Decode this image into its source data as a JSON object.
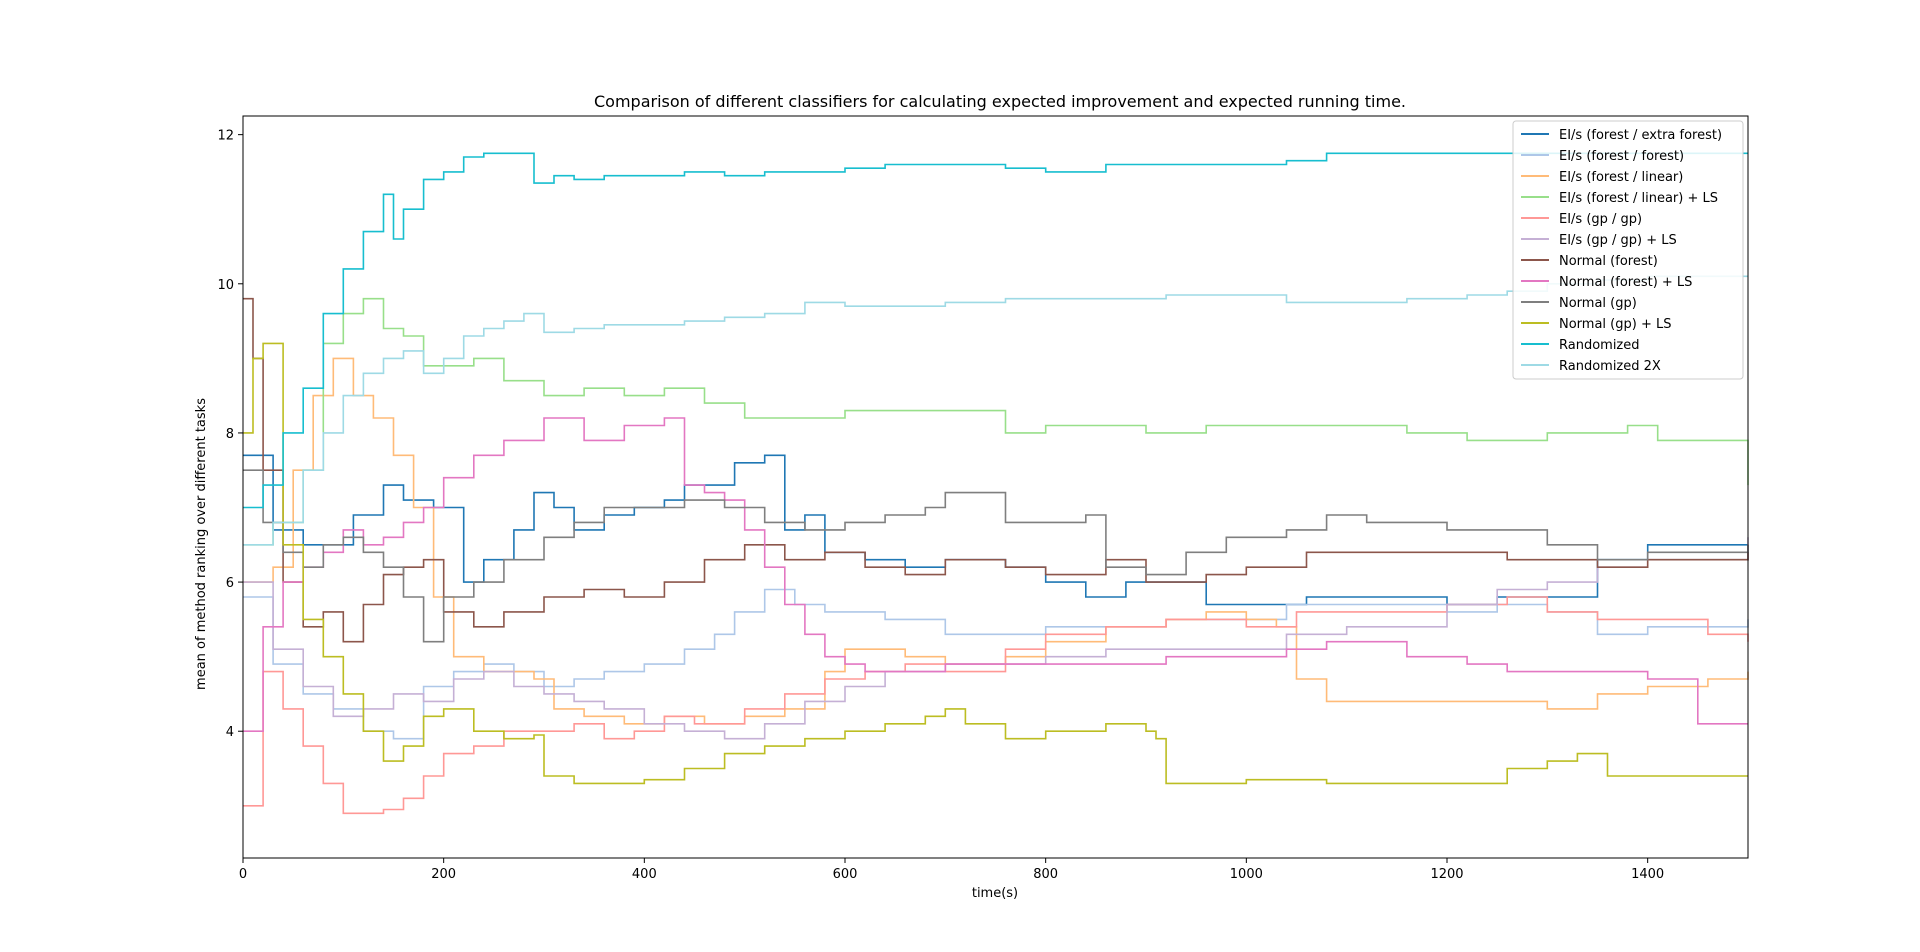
{
  "chart_data": {
    "type": "line",
    "title": "Comparison of different classifiers for calculating expected improvement and expected running time.",
    "xlabel": "time(s)",
    "ylabel": "mean of method ranking over different tasks",
    "xlim": [
      0,
      1500
    ],
    "ylim": [
      2.3,
      12.25
    ],
    "xticks": [
      0,
      200,
      400,
      600,
      800,
      1000,
      1200,
      1400
    ],
    "yticks": [
      4,
      6,
      8,
      10,
      12
    ],
    "grid": false,
    "legend_position": "top-right",
    "series": [
      {
        "name": "EI/s (forest / extra forest)",
        "color": "#1f77b4",
        "x": [
          0,
          30,
          60,
          90,
          110,
          140,
          160,
          190,
          220,
          240,
          270,
          290,
          310,
          330,
          360,
          390,
          420,
          440,
          460,
          490,
          520,
          540,
          560,
          580,
          620,
          660,
          700,
          760,
          800,
          840,
          880,
          920,
          960,
          1000,
          1060,
          1100,
          1160,
          1200,
          1250,
          1300,
          1350,
          1400,
          1500
        ],
        "y": [
          7.7,
          6.7,
          6.5,
          6.5,
          6.9,
          7.3,
          7.1,
          7.0,
          6.0,
          6.3,
          6.7,
          7.2,
          7.0,
          6.7,
          6.9,
          7.0,
          7.1,
          7.3,
          7.3,
          7.6,
          7.7,
          6.7,
          6.9,
          6.4,
          6.3,
          6.2,
          6.3,
          6.2,
          6.0,
          5.8,
          6.0,
          6.0,
          5.7,
          5.7,
          5.8,
          5.8,
          5.8,
          5.7,
          5.8,
          5.8,
          6.3,
          6.5,
          6.5
        ]
      },
      {
        "name": "EI/s (forest / forest)",
        "color": "#aec7e8",
        "x": [
          0,
          30,
          60,
          90,
          120,
          150,
          180,
          210,
          240,
          270,
          300,
          330,
          360,
          400,
          440,
          470,
          490,
          520,
          550,
          580,
          600,
          640,
          700,
          750,
          800,
          860,
          920,
          980,
          1040,
          1100,
          1200,
          1250,
          1300,
          1350,
          1400,
          1500
        ],
        "y": [
          5.8,
          4.9,
          4.5,
          4.3,
          4.0,
          3.9,
          4.6,
          4.8,
          4.9,
          4.8,
          4.6,
          4.7,
          4.8,
          4.9,
          5.1,
          5.3,
          5.6,
          5.9,
          5.7,
          5.6,
          5.6,
          5.5,
          5.3,
          5.3,
          5.4,
          5.4,
          5.5,
          5.5,
          5.7,
          5.7,
          5.6,
          5.7,
          5.6,
          5.3,
          5.4,
          5.5
        ]
      },
      {
        "name": "EI/s (forest / linear)",
        "color": "#ffbb78",
        "x": [
          0,
          30,
          50,
          70,
          90,
          110,
          130,
          150,
          170,
          190,
          210,
          240,
          270,
          290,
          310,
          340,
          380,
          420,
          460,
          500,
          540,
          580,
          600,
          660,
          700,
          760,
          800,
          860,
          920,
          960,
          1000,
          1030,
          1050,
          1080,
          1120,
          1200,
          1260,
          1300,
          1350,
          1400,
          1460,
          1500
        ],
        "y": [
          6.0,
          6.2,
          7.5,
          8.5,
          9.0,
          8.5,
          8.2,
          7.7,
          7.0,
          5.8,
          5.0,
          4.8,
          4.8,
          4.7,
          4.3,
          4.2,
          4.1,
          4.2,
          4.1,
          4.2,
          4.3,
          4.8,
          5.1,
          5.0,
          4.9,
          5.0,
          5.2,
          5.4,
          5.5,
          5.6,
          5.5,
          5.4,
          4.7,
          4.4,
          4.4,
          4.4,
          4.4,
          4.3,
          4.5,
          4.6,
          4.7,
          4.8
        ]
      },
      {
        "name": "EI/s (forest / linear) + LS",
        "color": "#98df8a",
        "x": [
          0,
          30,
          60,
          80,
          100,
          120,
          140,
          160,
          180,
          200,
          230,
          260,
          300,
          340,
          380,
          420,
          460,
          500,
          540,
          600,
          700,
          760,
          800,
          900,
          960,
          1000,
          1080,
          1160,
          1220,
          1260,
          1300,
          1380,
          1410,
          1450,
          1500
        ],
        "y": [
          6.5,
          6.8,
          7.5,
          9.2,
          9.6,
          9.8,
          9.4,
          9.3,
          8.9,
          8.9,
          9.0,
          8.7,
          8.5,
          8.6,
          8.5,
          8.6,
          8.4,
          8.2,
          8.2,
          8.3,
          8.3,
          8.0,
          8.1,
          8.0,
          8.1,
          8.1,
          8.1,
          8.0,
          7.9,
          7.9,
          8.0,
          8.1,
          7.9,
          7.9,
          7.3
        ]
      },
      {
        "name": "EI/s (gp / gp)",
        "color": "#ff9896",
        "x": [
          0,
          20,
          40,
          60,
          80,
          100,
          120,
          140,
          160,
          180,
          200,
          230,
          260,
          300,
          330,
          360,
          390,
          420,
          450,
          500,
          540,
          580,
          620,
          660,
          700,
          760,
          800,
          860,
          920,
          980,
          1000,
          1050,
          1100,
          1200,
          1260,
          1300,
          1350,
          1400,
          1460,
          1500
        ],
        "y": [
          3.0,
          4.8,
          4.3,
          3.8,
          3.3,
          2.9,
          2.9,
          2.95,
          3.1,
          3.4,
          3.7,
          3.8,
          4.0,
          4.0,
          4.1,
          3.9,
          4.0,
          4.2,
          4.1,
          4.3,
          4.5,
          4.7,
          4.8,
          4.9,
          4.8,
          5.1,
          5.3,
          5.4,
          5.5,
          5.5,
          5.4,
          5.6,
          5.6,
          5.7,
          5.8,
          5.6,
          5.5,
          5.5,
          5.3,
          5.2
        ]
      },
      {
        "name": "EI/s (gp / gp) + LS",
        "color": "#c5b0d5",
        "x": [
          0,
          30,
          60,
          90,
          120,
          150,
          180,
          210,
          240,
          270,
          300,
          330,
          360,
          400,
          440,
          480,
          520,
          560,
          600,
          640,
          700,
          760,
          800,
          860,
          920,
          980,
          1040,
          1100,
          1200,
          1250,
          1300,
          1350,
          1400,
          1500
        ],
        "y": [
          6.0,
          5.1,
          4.6,
          4.2,
          4.3,
          4.5,
          4.4,
          4.7,
          4.8,
          4.6,
          4.5,
          4.4,
          4.3,
          4.1,
          4.0,
          3.9,
          4.1,
          4.4,
          4.6,
          4.8,
          4.9,
          4.9,
          5.0,
          5.1,
          5.1,
          5.1,
          5.3,
          5.4,
          5.7,
          5.9,
          6.0,
          6.2,
          6.3,
          6.6
        ]
      },
      {
        "name": "Normal (forest)",
        "color": "#8c564b",
        "x": [
          0,
          10,
          20,
          40,
          60,
          80,
          100,
          120,
          140,
          160,
          180,
          200,
          230,
          260,
          300,
          340,
          380,
          420,
          460,
          500,
          540,
          580,
          620,
          660,
          700,
          760,
          800,
          860,
          900,
          960,
          1000,
          1060,
          1100,
          1160,
          1200,
          1260,
          1300,
          1350,
          1400,
          1500
        ],
        "y": [
          9.8,
          9.0,
          7.5,
          6.0,
          5.4,
          5.6,
          5.2,
          5.7,
          6.1,
          6.2,
          6.3,
          5.6,
          5.4,
          5.6,
          5.8,
          5.9,
          5.8,
          6.0,
          6.3,
          6.5,
          6.3,
          6.4,
          6.2,
          6.1,
          6.3,
          6.2,
          6.1,
          6.3,
          6.0,
          6.1,
          6.2,
          6.4,
          6.4,
          6.4,
          6.4,
          6.3,
          6.3,
          6.2,
          6.3,
          6.4
        ]
      },
      {
        "name": "Normal (forest) + LS",
        "color": "#e377c2",
        "x": [
          0,
          20,
          40,
          60,
          80,
          100,
          120,
          140,
          160,
          180,
          200,
          230,
          260,
          300,
          340,
          380,
          420,
          440,
          460,
          480,
          500,
          520,
          540,
          560,
          580,
          600,
          620,
          660,
          700,
          760,
          800,
          860,
          920,
          980,
          1040,
          1080,
          1160,
          1220,
          1260,
          1300,
          1350,
          1400,
          1450,
          1500
        ],
        "y": [
          4.0,
          5.4,
          6.0,
          6.2,
          6.4,
          6.7,
          6.5,
          6.6,
          6.8,
          7.0,
          7.4,
          7.7,
          7.9,
          8.2,
          7.9,
          8.1,
          8.2,
          7.3,
          7.2,
          7.1,
          6.7,
          6.2,
          5.7,
          5.3,
          5.0,
          4.9,
          4.8,
          4.8,
          4.9,
          4.9,
          4.9,
          4.9,
          5.0,
          5.0,
          5.1,
          5.2,
          5.0,
          4.9,
          4.8,
          4.8,
          4.8,
          4.7,
          4.1,
          4.1
        ]
      },
      {
        "name": "Normal (gp)",
        "color": "#7f7f7f",
        "x": [
          0,
          20,
          40,
          60,
          80,
          100,
          120,
          140,
          160,
          180,
          200,
          230,
          260,
          300,
          330,
          360,
          400,
          440,
          480,
          520,
          560,
          600,
          640,
          680,
          700,
          760,
          800,
          840,
          860,
          900,
          940,
          980,
          1040,
          1080,
          1120,
          1200,
          1250,
          1300,
          1350,
          1400,
          1500
        ],
        "y": [
          7.5,
          6.8,
          6.4,
          6.2,
          6.5,
          6.6,
          6.4,
          6.2,
          5.8,
          5.2,
          5.8,
          6.0,
          6.3,
          6.6,
          6.8,
          7.0,
          7.0,
          7.1,
          7.0,
          6.8,
          6.7,
          6.8,
          6.9,
          7.0,
          7.2,
          6.8,
          6.8,
          6.9,
          6.2,
          6.1,
          6.4,
          6.6,
          6.7,
          6.9,
          6.8,
          6.7,
          6.7,
          6.5,
          6.3,
          6.4,
          6.5
        ]
      },
      {
        "name": "Normal (gp) + LS",
        "color": "#bcbd22",
        "x": [
          0,
          10,
          20,
          40,
          60,
          80,
          100,
          120,
          140,
          160,
          180,
          200,
          230,
          260,
          290,
          300,
          330,
          360,
          400,
          440,
          480,
          520,
          560,
          600,
          640,
          680,
          700,
          720,
          760,
          800,
          860,
          900,
          910,
          920,
          960,
          1000,
          1080,
          1160,
          1200,
          1260,
          1300,
          1330,
          1360,
          1500
        ],
        "y": [
          8.0,
          9.0,
          9.2,
          6.5,
          5.5,
          5.0,
          4.5,
          4.0,
          3.6,
          3.8,
          4.2,
          4.3,
          4.0,
          3.9,
          3.95,
          3.4,
          3.3,
          3.3,
          3.35,
          3.5,
          3.7,
          3.8,
          3.9,
          4.0,
          4.1,
          4.2,
          4.3,
          4.1,
          3.9,
          4.0,
          4.1,
          4.0,
          3.9,
          3.3,
          3.3,
          3.35,
          3.3,
          3.3,
          3.3,
          3.5,
          3.6,
          3.7,
          3.4,
          3.4
        ]
      },
      {
        "name": "Randomized",
        "color": "#17becf",
        "x": [
          0,
          20,
          40,
          60,
          80,
          100,
          120,
          140,
          150,
          160,
          180,
          200,
          220,
          240,
          270,
          290,
          310,
          330,
          360,
          400,
          440,
          480,
          520,
          560,
          600,
          640,
          700,
          760,
          800,
          860,
          920,
          980,
          1040,
          1080,
          1160,
          1220,
          1300,
          1400,
          1500
        ],
        "y": [
          7.0,
          7.3,
          8.0,
          8.6,
          9.6,
          10.2,
          10.7,
          11.2,
          10.6,
          11.0,
          11.4,
          11.5,
          11.7,
          11.75,
          11.75,
          11.35,
          11.45,
          11.4,
          11.45,
          11.45,
          11.5,
          11.45,
          11.5,
          11.5,
          11.55,
          11.6,
          11.6,
          11.55,
          11.5,
          11.6,
          11.6,
          11.6,
          11.65,
          11.75,
          11.75,
          11.75,
          11.75,
          11.75,
          11.75
        ]
      },
      {
        "name": "Randomized 2X",
        "color": "#9edae5",
        "x": [
          0,
          30,
          60,
          80,
          100,
          120,
          140,
          160,
          180,
          200,
          220,
          240,
          260,
          280,
          300,
          330,
          360,
          400,
          440,
          480,
          520,
          560,
          600,
          640,
          700,
          760,
          800,
          860,
          920,
          980,
          1040,
          1100,
          1160,
          1220,
          1260,
          1300,
          1350,
          1400,
          1500
        ],
        "y": [
          6.5,
          6.8,
          7.5,
          8.0,
          8.5,
          8.8,
          9.0,
          9.1,
          8.8,
          9.0,
          9.3,
          9.4,
          9.5,
          9.6,
          9.35,
          9.4,
          9.45,
          9.45,
          9.5,
          9.55,
          9.6,
          9.75,
          9.7,
          9.7,
          9.75,
          9.8,
          9.8,
          9.8,
          9.85,
          9.85,
          9.75,
          9.75,
          9.8,
          9.85,
          9.9,
          10.0,
          10.05,
          10.1,
          10.1
        ]
      }
    ]
  }
}
